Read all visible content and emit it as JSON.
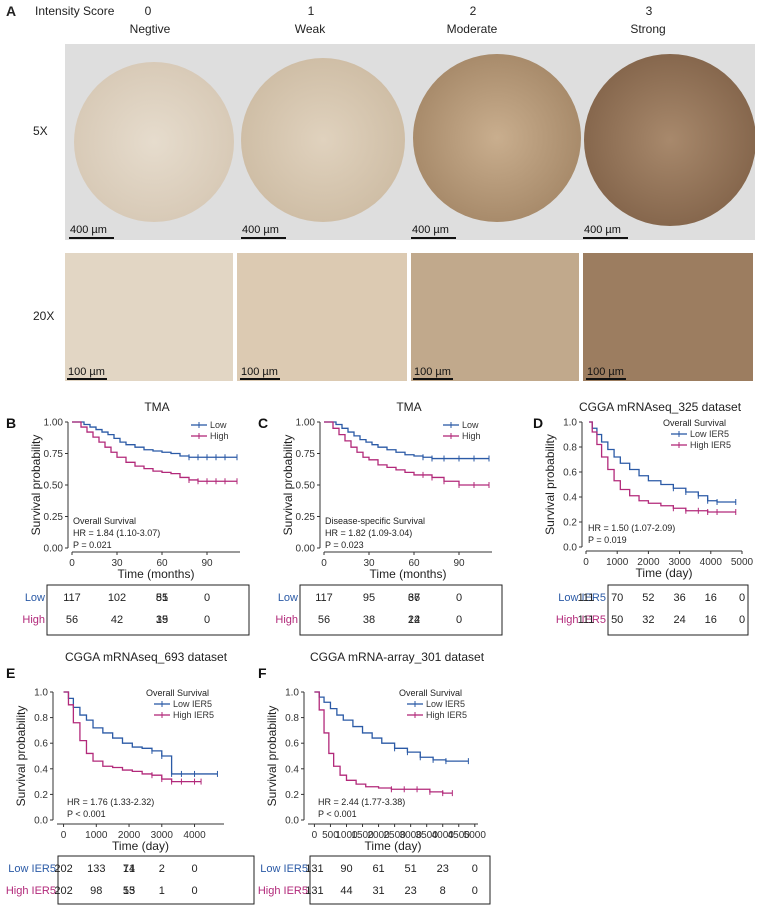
{
  "panel_a": {
    "letter": "A",
    "intensity_label": "Intensity Score",
    "columns": [
      {
        "score": "0",
        "name": "Negtive"
      },
      {
        "score": "1",
        "name": "Weak"
      },
      {
        "score": "2",
        "name": "Moderate"
      },
      {
        "score": "3",
        "name": "Strong"
      }
    ],
    "row_5x": "5X",
    "row_20x": "20X",
    "scale_5x": "400 µm",
    "scale_20x": "100 µm"
  },
  "chart_data": [
    {
      "letter": "B",
      "type": "line",
      "title": "TMA",
      "xlabel": "Time (months)",
      "ylabel": "Survival probability",
      "xlim": [
        0,
        112
      ],
      "ylim": [
        0,
        1
      ],
      "xticks": [
        0,
        30,
        60,
        90
      ],
      "yticks": [
        "0.00",
        "0.25",
        "0.50",
        "0.75",
        "1.00"
      ],
      "annotation": [
        "Overall Survival",
        "HR = 1.84 (1.10-3.07)",
        "P = 0.021"
      ],
      "legend_title": "",
      "legend_position": "top-right",
      "series": [
        {
          "name": "Low",
          "color": "#2b5aa6",
          "x": [
            0,
            8,
            12,
            16,
            20,
            24,
            28,
            32,
            36,
            42,
            48,
            54,
            60,
            66,
            72,
            78,
            84,
            90,
            96,
            102,
            110
          ],
          "y": [
            1.0,
            0.98,
            0.96,
            0.94,
            0.92,
            0.9,
            0.87,
            0.84,
            0.82,
            0.8,
            0.78,
            0.77,
            0.76,
            0.75,
            0.73,
            0.72,
            0.72,
            0.72,
            0.72,
            0.72,
            0.72
          ]
        },
        {
          "name": "High",
          "color": "#b2297a",
          "x": [
            0,
            6,
            10,
            14,
            18,
            22,
            26,
            30,
            36,
            42,
            48,
            54,
            60,
            66,
            72,
            78,
            84,
            90,
            96,
            102,
            110
          ],
          "y": [
            1.0,
            0.96,
            0.92,
            0.88,
            0.84,
            0.8,
            0.76,
            0.72,
            0.68,
            0.65,
            0.63,
            0.61,
            0.6,
            0.59,
            0.56,
            0.54,
            0.53,
            0.53,
            0.53,
            0.53,
            0.53
          ]
        }
      ],
      "risk_table": {
        "rows": [
          {
            "label": "Low",
            "color": "#2b5aa6",
            "values": [
              "117",
              "102",
              "85",
              "51",
              "0"
            ]
          },
          {
            "label": "High",
            "color": "#b2297a",
            "values": [
              "56",
              "42",
              "35",
              "19",
              "0"
            ]
          }
        ]
      }
    },
    {
      "letter": "C",
      "type": "line",
      "title": "TMA",
      "xlabel": "Time (months)",
      "ylabel": "Survival probability",
      "xlim": [
        0,
        112
      ],
      "ylim": [
        0,
        1
      ],
      "xticks": [
        0,
        30,
        60,
        90
      ],
      "yticks": [
        "0.00",
        "0.25",
        "0.50",
        "0.75",
        "1.00"
      ],
      "annotation": [
        "Disease-specific Survival",
        "HR = 1.82 (1.09-3.04)",
        "P = 0.023"
      ],
      "legend_title": "",
      "legend_position": "top-right",
      "series": [
        {
          "name": "Low",
          "color": "#2b5aa6",
          "x": [
            0,
            8,
            12,
            16,
            20,
            24,
            28,
            32,
            36,
            42,
            48,
            54,
            60,
            66,
            72,
            80,
            90,
            100,
            110
          ],
          "y": [
            1.0,
            0.98,
            0.95,
            0.92,
            0.89,
            0.86,
            0.84,
            0.82,
            0.8,
            0.78,
            0.76,
            0.74,
            0.73,
            0.72,
            0.71,
            0.71,
            0.71,
            0.71,
            0.71
          ]
        },
        {
          "name": "High",
          "color": "#b2297a",
          "x": [
            0,
            6,
            10,
            14,
            18,
            22,
            26,
            30,
            36,
            42,
            48,
            54,
            60,
            66,
            72,
            80,
            90,
            100,
            110
          ],
          "y": [
            1.0,
            0.95,
            0.9,
            0.85,
            0.8,
            0.76,
            0.72,
            0.7,
            0.66,
            0.64,
            0.62,
            0.6,
            0.58,
            0.58,
            0.56,
            0.53,
            0.5,
            0.5,
            0.5
          ]
        }
      ],
      "risk_table": {
        "rows": [
          {
            "label": "Low",
            "color": "#2b5aa6",
            "values": [
              "117",
              "95",
              "67",
              "36",
              "0"
            ]
          },
          {
            "label": "High",
            "color": "#b2297a",
            "values": [
              "56",
              "38",
              "24",
              "12",
              "0"
            ]
          }
        ]
      }
    },
    {
      "letter": "D",
      "type": "line",
      "title": "CGGA mRNAseq_325 dataset",
      "xlabel": "Time (day)",
      "ylabel": "Survival probability",
      "xlim": [
        0,
        5000
      ],
      "ylim": [
        0,
        1
      ],
      "xticks": [
        0,
        1000,
        2000,
        3000,
        4000,
        5000
      ],
      "yticks": [
        "0.0",
        "0.2",
        "0.4",
        "0.6",
        "0.8",
        "1.0"
      ],
      "annotation": [
        "",
        "HR = 1.50 (1.07-2.09)",
        "P = 0.019"
      ],
      "legend_title": "Overall Survival",
      "legend_position": "top-right",
      "series": [
        {
          "name": "Low IER5",
          "color": "#2b5aa6",
          "x": [
            100,
            200,
            350,
            500,
            700,
            900,
            1100,
            1400,
            1700,
            2000,
            2400,
            2800,
            3200,
            3600,
            3900,
            4200,
            4800
          ],
          "y": [
            1.0,
            0.95,
            0.9,
            0.84,
            0.78,
            0.72,
            0.67,
            0.62,
            0.57,
            0.53,
            0.5,
            0.47,
            0.44,
            0.41,
            0.37,
            0.36,
            0.36
          ]
        },
        {
          "name": "High IER5",
          "color": "#b2297a",
          "x": [
            100,
            200,
            350,
            500,
            700,
            900,
            1100,
            1400,
            1700,
            2000,
            2400,
            2800,
            3200,
            3600,
            3900,
            4200,
            4800
          ],
          "y": [
            1.0,
            0.92,
            0.82,
            0.72,
            0.62,
            0.53,
            0.46,
            0.41,
            0.37,
            0.35,
            0.33,
            0.31,
            0.29,
            0.29,
            0.28,
            0.28,
            0.28
          ]
        }
      ],
      "risk_table": {
        "rows": [
          {
            "label": "Low IER5",
            "color": "#2b5aa6",
            "values": [
              "111",
              "70",
              "52",
              "36",
              "16",
              "0"
            ]
          },
          {
            "label": "High IER5",
            "color": "#b2297a",
            "values": [
              "111",
              "50",
              "32",
              "24",
              "16",
              "0"
            ]
          }
        ]
      }
    },
    {
      "letter": "E",
      "type": "line",
      "title": "CGGA mRNAseq_693 dataset",
      "xlabel": "Time (day)",
      "ylabel": "Survival probability",
      "xlim": [
        -200,
        4900
      ],
      "ylim": [
        0,
        1
      ],
      "xticks": [
        0,
        1000,
        2000,
        3000,
        4000
      ],
      "yticks": [
        "0.0",
        "0.2",
        "0.4",
        "0.6",
        "0.8",
        "1.0"
      ],
      "annotation": [
        "",
        "HR = 1.76 (1.33-2.32)",
        "P < 0.001"
      ],
      "legend_title": "Overall Survival",
      "legend_position": "top-right",
      "series": [
        {
          "name": "Low IER5",
          "color": "#2b5aa6",
          "x": [
            0,
            150,
            300,
            500,
            700,
            900,
            1200,
            1500,
            1800,
            2100,
            2400,
            2700,
            3000,
            3300,
            3600,
            4000,
            4700
          ],
          "y": [
            1.0,
            0.95,
            0.88,
            0.82,
            0.78,
            0.72,
            0.68,
            0.64,
            0.6,
            0.57,
            0.56,
            0.54,
            0.5,
            0.36,
            0.36,
            0.36,
            0.36
          ]
        },
        {
          "name": "High IER5",
          "color": "#b2297a",
          "x": [
            0,
            150,
            300,
            500,
            700,
            900,
            1200,
            1500,
            1800,
            2100,
            2400,
            2700,
            3000,
            3300,
            3600,
            4000,
            4200
          ],
          "y": [
            1.0,
            0.9,
            0.76,
            0.62,
            0.52,
            0.46,
            0.42,
            0.41,
            0.39,
            0.38,
            0.36,
            0.35,
            0.32,
            0.3,
            0.3,
            0.3,
            0.3
          ]
        }
      ],
      "risk_table": {
        "rows": [
          {
            "label": "Low IER5",
            "color": "#2b5aa6",
            "values": [
              "202",
              "133",
              "71",
              "14",
              "2",
              "0"
            ]
          },
          {
            "label": "High IER5",
            "color": "#b2297a",
            "values": [
              "202",
              "98",
              "53",
              "15",
              "1",
              "0"
            ]
          }
        ]
      }
    },
    {
      "letter": "F",
      "type": "line",
      "title": "CGGA mRNA-array_301 dataset",
      "xlabel": "Time (day)",
      "ylabel": "Survival probability",
      "xlim": [
        -200,
        5100
      ],
      "ylim": [
        0,
        1
      ],
      "xticks": [
        0,
        500,
        1000,
        1500,
        2000,
        2500,
        3000,
        3500,
        4000,
        4500,
        5000
      ],
      "yticks": [
        "0.0",
        "0.2",
        "0.4",
        "0.6",
        "0.8",
        "1.0"
      ],
      "annotation": [
        "",
        "HR = 2.44 (1.77-3.38)",
        "P < 0.001"
      ],
      "legend_title": "Overall Survival",
      "legend_position": "top-right",
      "series": [
        {
          "name": "Low IER5",
          "color": "#2b5aa6",
          "x": [
            0,
            150,
            300,
            500,
            700,
            900,
            1200,
            1500,
            1800,
            2100,
            2500,
            2900,
            3300,
            3700,
            4100,
            4800
          ],
          "y": [
            1.0,
            0.96,
            0.92,
            0.87,
            0.82,
            0.78,
            0.73,
            0.68,
            0.64,
            0.6,
            0.56,
            0.53,
            0.49,
            0.47,
            0.46,
            0.46
          ]
        },
        {
          "name": "High IER5",
          "color": "#b2297a",
          "x": [
            0,
            150,
            300,
            450,
            600,
            800,
            1000,
            1300,
            1600,
            2000,
            2400,
            2800,
            3200,
            3600,
            4000,
            4300
          ],
          "y": [
            1.0,
            0.86,
            0.68,
            0.52,
            0.42,
            0.35,
            0.31,
            0.28,
            0.26,
            0.25,
            0.24,
            0.24,
            0.24,
            0.22,
            0.21,
            0.21
          ]
        }
      ],
      "risk_table": {
        "rows": [
          {
            "label": "Low IER5",
            "color": "#2b5aa6",
            "values": [
              "131",
              "90",
              "61",
              "51",
              "23",
              "0"
            ]
          },
          {
            "label": "High IER5",
            "color": "#b2297a",
            "values": [
              "131",
              "44",
              "31",
              "23",
              "8",
              "0"
            ]
          }
        ]
      }
    }
  ]
}
